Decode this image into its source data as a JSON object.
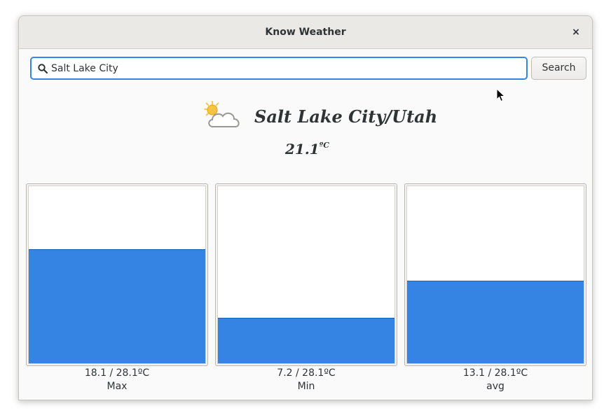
{
  "window": {
    "title": "Know Weather",
    "close_glyph": "×"
  },
  "search": {
    "value": "Salt Lake City",
    "placeholder": "",
    "button_label": "Search",
    "icon": "search-icon"
  },
  "weather": {
    "icon": "partly-cloudy-icon",
    "city": "Salt Lake City/Utah",
    "temperature": "21.1",
    "temperature_unit": "ºC"
  },
  "panels": [
    {
      "value_text": "18.1 / 28.1ºC",
      "label": "Max",
      "value": 18.1,
      "max": 28.1
    },
    {
      "value_text": "7.2 / 28.1ºC",
      "label": "Min",
      "value": 7.2,
      "max": 28.1
    },
    {
      "value_text": "13.1 / 28.1ºC",
      "label": "avg",
      "value": 13.1,
      "max": 28.1
    }
  ],
  "colors": {
    "accent": "#3584e4",
    "sun": "#f6c343",
    "text": "#2e3436"
  }
}
